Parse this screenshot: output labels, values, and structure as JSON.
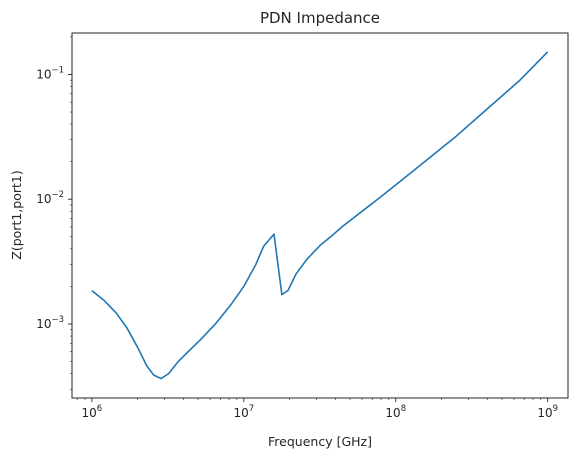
{
  "chart_data": {
    "type": "line",
    "title": "PDN Impedance",
    "xlabel": "Frequency [GHz]",
    "ylabel": "Z(port1,port1)",
    "xscale": "log",
    "yscale": "log",
    "xlim": [
      740000.0,
      1360000000.0
    ],
    "ylim": [
      0.000255,
      0.215
    ],
    "grid": false,
    "line_color": "#1f77b4",
    "x_ticks": [
      {
        "value": 1000000.0,
        "base": "10",
        "exp": "6"
      },
      {
        "value": 10000000.0,
        "base": "10",
        "exp": "7"
      },
      {
        "value": 100000000.0,
        "base": "10",
        "exp": "8"
      },
      {
        "value": 1000000000.0,
        "base": "10",
        "exp": "9"
      }
    ],
    "y_ticks": [
      {
        "value": 0.001,
        "base": "10",
        "exp": "−3"
      },
      {
        "value": 0.01,
        "base": "10",
        "exp": "−2"
      },
      {
        "value": 0.1,
        "base": "10",
        "exp": "−1"
      }
    ],
    "series": [
      {
        "x": [
          1000000,
          1200000,
          1450000,
          1700000,
          2000000,
          2300000,
          2550000,
          2850000,
          3200000,
          3700000,
          4300000,
          5200000,
          6500000,
          8300000,
          10000000,
          12000000,
          13500000,
          15800000,
          17800000,
          19500000,
          22000000,
          26000000,
          32000000,
          38000000,
          45000000,
          60000000,
          80000000,
          110000000,
          160000000,
          250000000,
          400000000,
          650000000,
          1000000000
        ],
        "y": [
          0.00185,
          0.00155,
          0.00122,
          0.00093,
          0.00065,
          0.00046,
          0.00039,
          0.000365,
          0.0004,
          0.0005,
          0.0006,
          0.00075,
          0.001,
          0.00145,
          0.002,
          0.003,
          0.0042,
          0.00525,
          0.00172,
          0.00185,
          0.0025,
          0.0033,
          0.0043,
          0.0051,
          0.0061,
          0.008,
          0.0105,
          0.0143,
          0.0206,
          0.032,
          0.053,
          0.089,
          0.152
        ]
      }
    ]
  }
}
